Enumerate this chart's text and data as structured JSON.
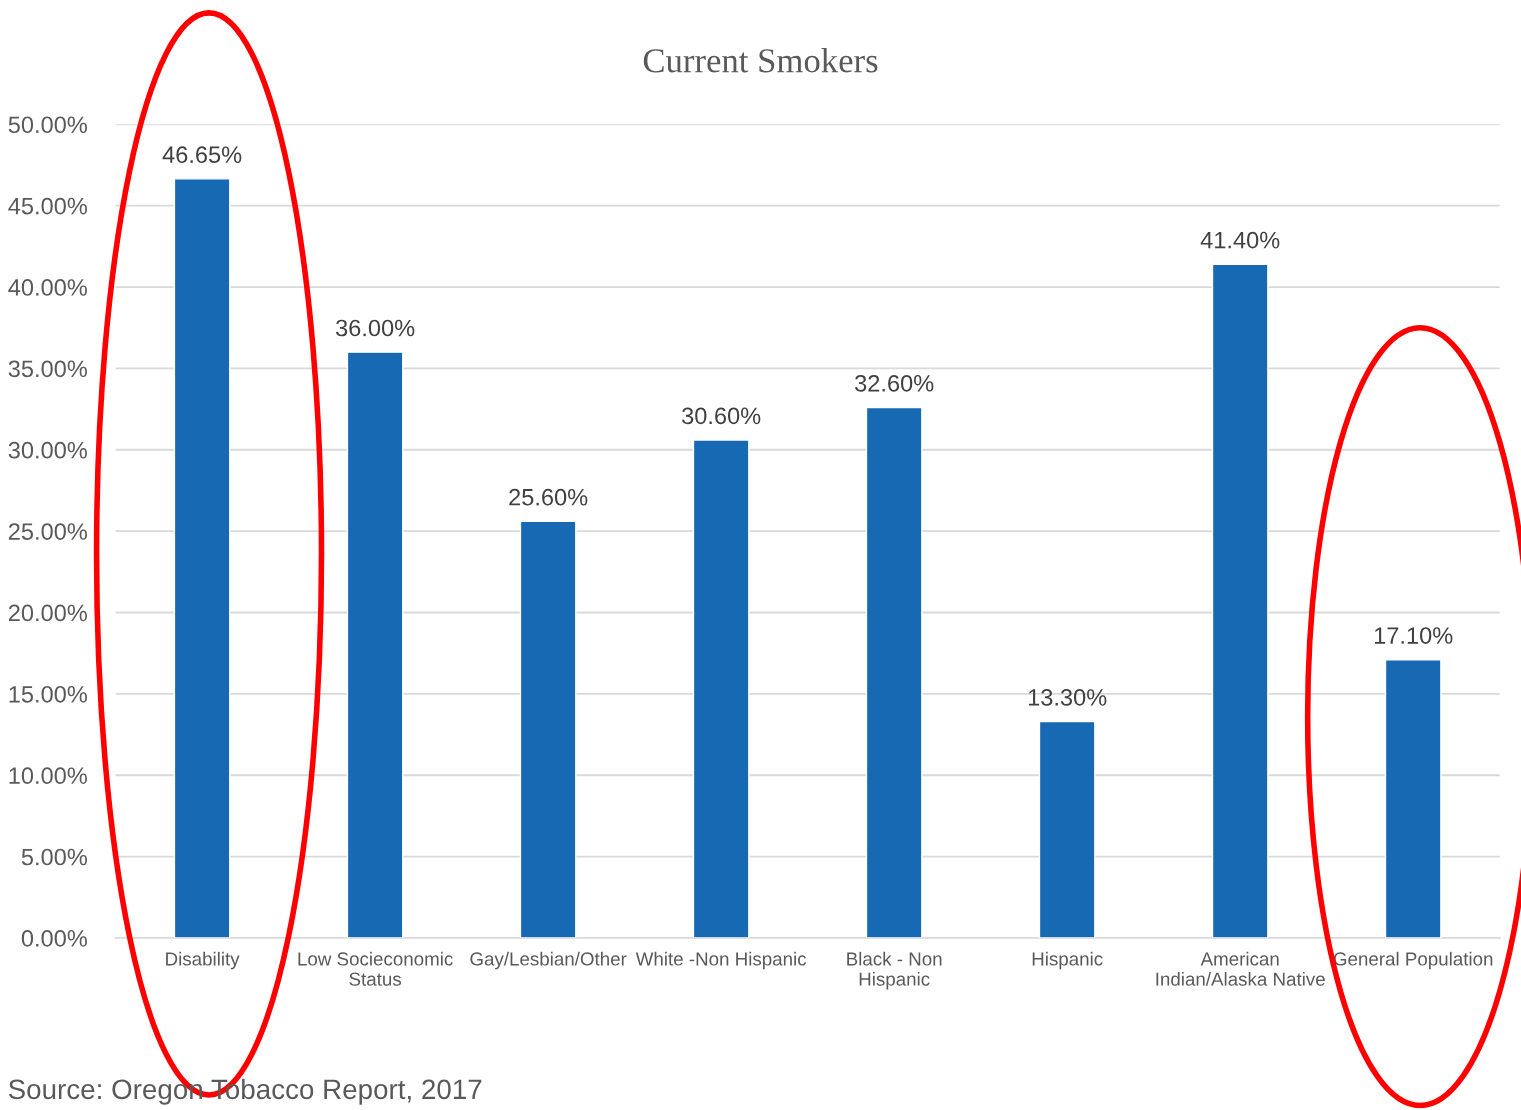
{
  "chart_data": {
    "type": "bar",
    "title": "Current Smokers",
    "categories": [
      "Disability",
      "Low Socieconomic\nStatus",
      "Gay/Lesbian/Other",
      "White -Non Hispanic",
      "Black - Non\nHispanic",
      "Hispanic",
      "American\nIndian/Alaska Native",
      "General Population"
    ],
    "values": [
      46.65,
      36.0,
      25.6,
      30.6,
      32.6,
      13.3,
      41.4,
      17.1
    ],
    "color": "#1769b3",
    "value_labels": [
      "46.65%",
      "36.00%",
      "25.60%",
      "30.60%",
      "32.60%",
      "13.30%",
      "41.40%",
      "17.10%"
    ],
    "ylim": [
      0,
      50
    ],
    "yticks": [
      {
        "value": 0,
        "label": "0.00%"
      },
      {
        "value": 5,
        "label": "5.00%"
      },
      {
        "value": 10,
        "label": "10.00%"
      },
      {
        "value": 15,
        "label": "15.00%"
      },
      {
        "value": 20,
        "label": "20.00%"
      },
      {
        "value": 25,
        "label": "25.00%"
      },
      {
        "value": 30,
        "label": "30.00%"
      },
      {
        "value": 35,
        "label": "35.00%"
      },
      {
        "value": 40,
        "label": "40.00%"
      },
      {
        "value": 45,
        "label": "45.00%"
      },
      {
        "value": 50,
        "label": "50.00%"
      }
    ],
    "grid": "y",
    "legend": false,
    "annotations": [
      "Source: Oregon Tobacco Report, 2017"
    ]
  }
}
